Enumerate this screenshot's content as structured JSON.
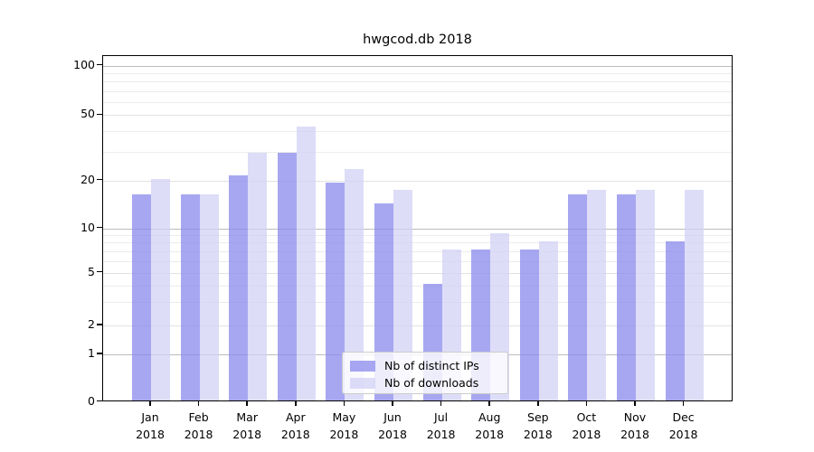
{
  "chart_data": {
    "type": "bar",
    "title": "hwgcod.db 2018",
    "categories": [
      "Jan",
      "Feb",
      "Mar",
      "Apr",
      "May",
      "Jun",
      "Jul",
      "Aug",
      "Sep",
      "Oct",
      "Nov",
      "Dec"
    ],
    "year_label": "2018",
    "series": [
      {
        "name": "Nb of distinct IPs",
        "color": "#8989ec",
        "values": [
          16,
          16,
          21,
          29,
          19,
          14,
          4,
          7,
          7,
          16,
          16,
          8
        ]
      },
      {
        "name": "Nb of downloads",
        "color": "#d2d2f6",
        "values": [
          20,
          16,
          29,
          42,
          23,
          17,
          7,
          9,
          8,
          17,
          17,
          17
        ]
      }
    ],
    "yscale": "symlog",
    "y_ticks": [
      {
        "value": 100,
        "label": "100"
      },
      {
        "value": 50,
        "label": "50"
      },
      {
        "value": 20,
        "label": "20"
      },
      {
        "value": 10,
        "label": "10"
      },
      {
        "value": 5,
        "label": "5"
      },
      {
        "value": 2,
        "label": "2"
      },
      {
        "value": 1,
        "label": "1"
      },
      {
        "value": 0,
        "label": "0"
      }
    ],
    "ylim": [
      0,
      114
    ],
    "grid": "both",
    "legend_position": "lower center"
  },
  "colors": {
    "major_grid": "#bdbdbd",
    "mid_grid": "#e2e2e2",
    "minor_grid": "#ececec",
    "spine": "#000000",
    "background": "#ffffff"
  }
}
